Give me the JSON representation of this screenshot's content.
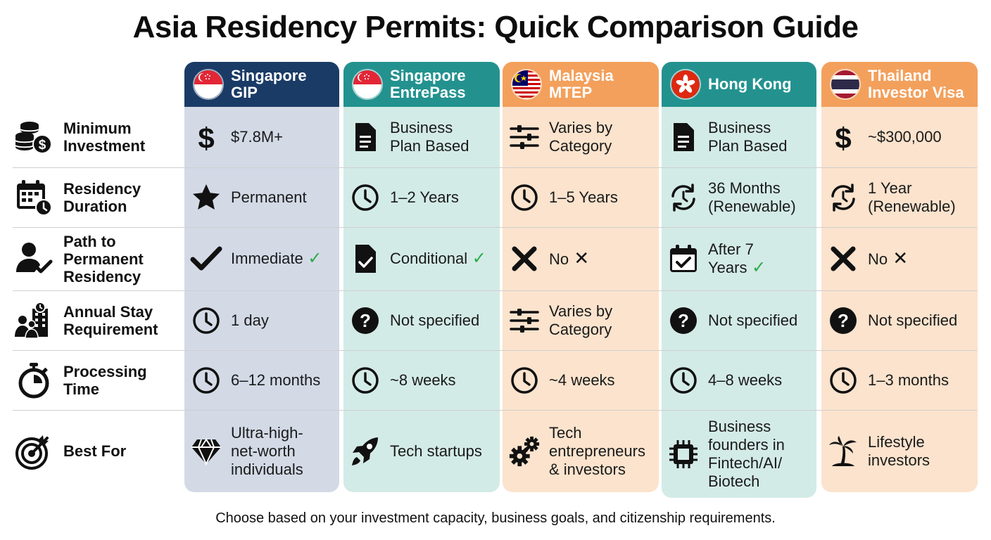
{
  "title": "Asia Residency Permits: Quick Comparison Guide",
  "footer": "Choose based on your investment capacity, business goals, and citizenship requirements.",
  "colors": {
    "sg_gip_head": "#1a3b66",
    "sg_gip_body": "#d3dae6",
    "sg_ep_head": "#23928f",
    "sg_ep_body": "#d3ebe6",
    "my_head": "#f3a05c",
    "my_body": "#fbe3cd",
    "hk_head": "#23928f",
    "hk_body": "#d3ebe6",
    "th_head": "#f3a05c",
    "th_body": "#fbe3cd"
  },
  "columns": [
    {
      "name": "Singapore\nGIP",
      "flag": "singapore-flag-icon"
    },
    {
      "name": "Singapore\nEntrePass",
      "flag": "singapore-flag-icon"
    },
    {
      "name": "Malaysia\nMTEP",
      "flag": "malaysia-flag-icon"
    },
    {
      "name": "Hong Kong",
      "flag": "hong-kong-flag-icon"
    },
    {
      "name": "Thailand\nInvestor Visa",
      "flag": "thailand-flag-icon"
    }
  ],
  "rows": [
    {
      "label": "Minimum\nInvestment",
      "icon": "coins-icon",
      "cells": [
        {
          "icon": "dollar-icon",
          "text": "$7.8M+"
        },
        {
          "icon": "document-icon",
          "text": "Business\nPlan Based"
        },
        {
          "icon": "sliders-icon",
          "text": "Varies by\nCategory"
        },
        {
          "icon": "document-icon",
          "text": "Business\nPlan Based"
        },
        {
          "icon": "dollar-icon",
          "text": "~$300,000"
        }
      ]
    },
    {
      "label": "Residency\nDuration",
      "icon": "calendar-clock-icon",
      "cells": [
        {
          "icon": "star-icon",
          "text": "Permanent"
        },
        {
          "icon": "clock-icon",
          "text": "1–2 Years"
        },
        {
          "icon": "clock-icon",
          "text": "1–5 Years"
        },
        {
          "icon": "renew-clock-icon",
          "text": "36 Months\n(Renewable)"
        },
        {
          "icon": "renew-clock-icon",
          "text": "1 Year\n(Renewable)"
        }
      ]
    },
    {
      "label": "Path to\nPermanent\nResidency",
      "icon": "user-check-icon",
      "cells": [
        {
          "icon": "checkmark-icon",
          "text": "Immediate",
          "mark": "✓"
        },
        {
          "icon": "document-check-icon",
          "text": "Conditional",
          "mark": "✓"
        },
        {
          "icon": "x-icon",
          "text": "No",
          "mark": "✕"
        },
        {
          "icon": "calendar-check-icon",
          "text": "After 7\nYears",
          "mark": "✓"
        },
        {
          "icon": "x-icon",
          "text": "No",
          "mark": "✕"
        }
      ]
    },
    {
      "label": "Annual Stay\nRequirement",
      "icon": "people-building-icon",
      "cells": [
        {
          "icon": "clock-icon",
          "text": "1 day"
        },
        {
          "icon": "question-icon",
          "text": "Not specified"
        },
        {
          "icon": "sliders-icon",
          "text": "Varies by\nCategory"
        },
        {
          "icon": "question-icon",
          "text": "Not specified"
        },
        {
          "icon": "question-icon",
          "text": "Not specified"
        }
      ]
    },
    {
      "label": "Processing\nTime",
      "icon": "stopwatch-icon",
      "cells": [
        {
          "icon": "clock-icon",
          "text": "6–12 months"
        },
        {
          "icon": "clock-icon",
          "text": "~8 weeks"
        },
        {
          "icon": "clock-icon",
          "text": "~4 weeks"
        },
        {
          "icon": "clock-icon",
          "text": "4–8 weeks"
        },
        {
          "icon": "clock-icon",
          "text": "1–3 months"
        }
      ]
    },
    {
      "label": "Best For",
      "icon": "target-icon",
      "cells": [
        {
          "icon": "diamond-icon",
          "text": "Ultra-high-\nnet-worth\nindividuals"
        },
        {
          "icon": "rocket-icon",
          "text": "Tech startups"
        },
        {
          "icon": "gears-icon",
          "text": "Tech\nentrepreneurs\n& investors"
        },
        {
          "icon": "chip-icon",
          "text": "Business\nfounders in\nFintech/AI/\nBiotech"
        },
        {
          "icon": "palm-tree-icon",
          "text": "Lifestyle\ninvestors"
        }
      ]
    }
  ]
}
